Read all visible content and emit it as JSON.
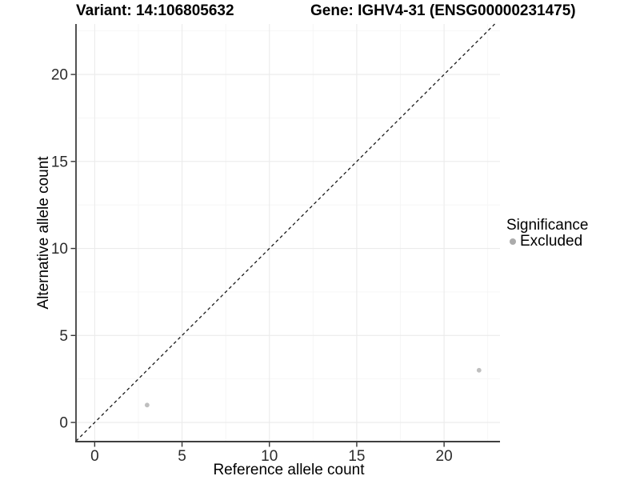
{
  "figure": {
    "variant_title": "Variant: 14:106805632",
    "gene_title": "Gene: IGHV4-31 (ENSG00000231475)"
  },
  "chart_data": {
    "type": "scatter",
    "xlabel": "Reference allele count",
    "ylabel": "Alternative allele count",
    "x_ticks": [
      0,
      5,
      10,
      15,
      20
    ],
    "y_ticks": [
      0,
      5,
      10,
      15,
      20
    ],
    "x_minor_ticks": [
      2.5,
      7.5,
      12.5,
      17.5,
      22.5
    ],
    "y_minor_ticks": [
      2.5,
      7.5,
      12.5,
      17.5,
      22.5
    ],
    "xlim": [
      -1.07,
      23.2
    ],
    "ylim": [
      -1.1,
      22.9
    ],
    "grid": "major+minor",
    "background": "#ffffff",
    "series": [
      {
        "name": "Excluded",
        "color": "#BFBFBF",
        "points": [
          {
            "x": 3,
            "y": 1
          },
          {
            "x": 22,
            "y": 3
          }
        ]
      }
    ],
    "reference_line": {
      "type": "identity",
      "slope": 1,
      "intercept": 0,
      "style": "dashed",
      "color": "#1a1a1a"
    },
    "legend": {
      "title": "Significance",
      "position": "right",
      "entries": [
        {
          "label": "Excluded",
          "color": "#ABABAB",
          "shape": "circle"
        }
      ]
    },
    "colors": {
      "grid_major": "#EBEBEB",
      "grid_minor": "#F5F5F5",
      "axis_line": "#3f3f3f",
      "tick_mark": "#333333",
      "tick_text": "#2b2b2b"
    }
  }
}
